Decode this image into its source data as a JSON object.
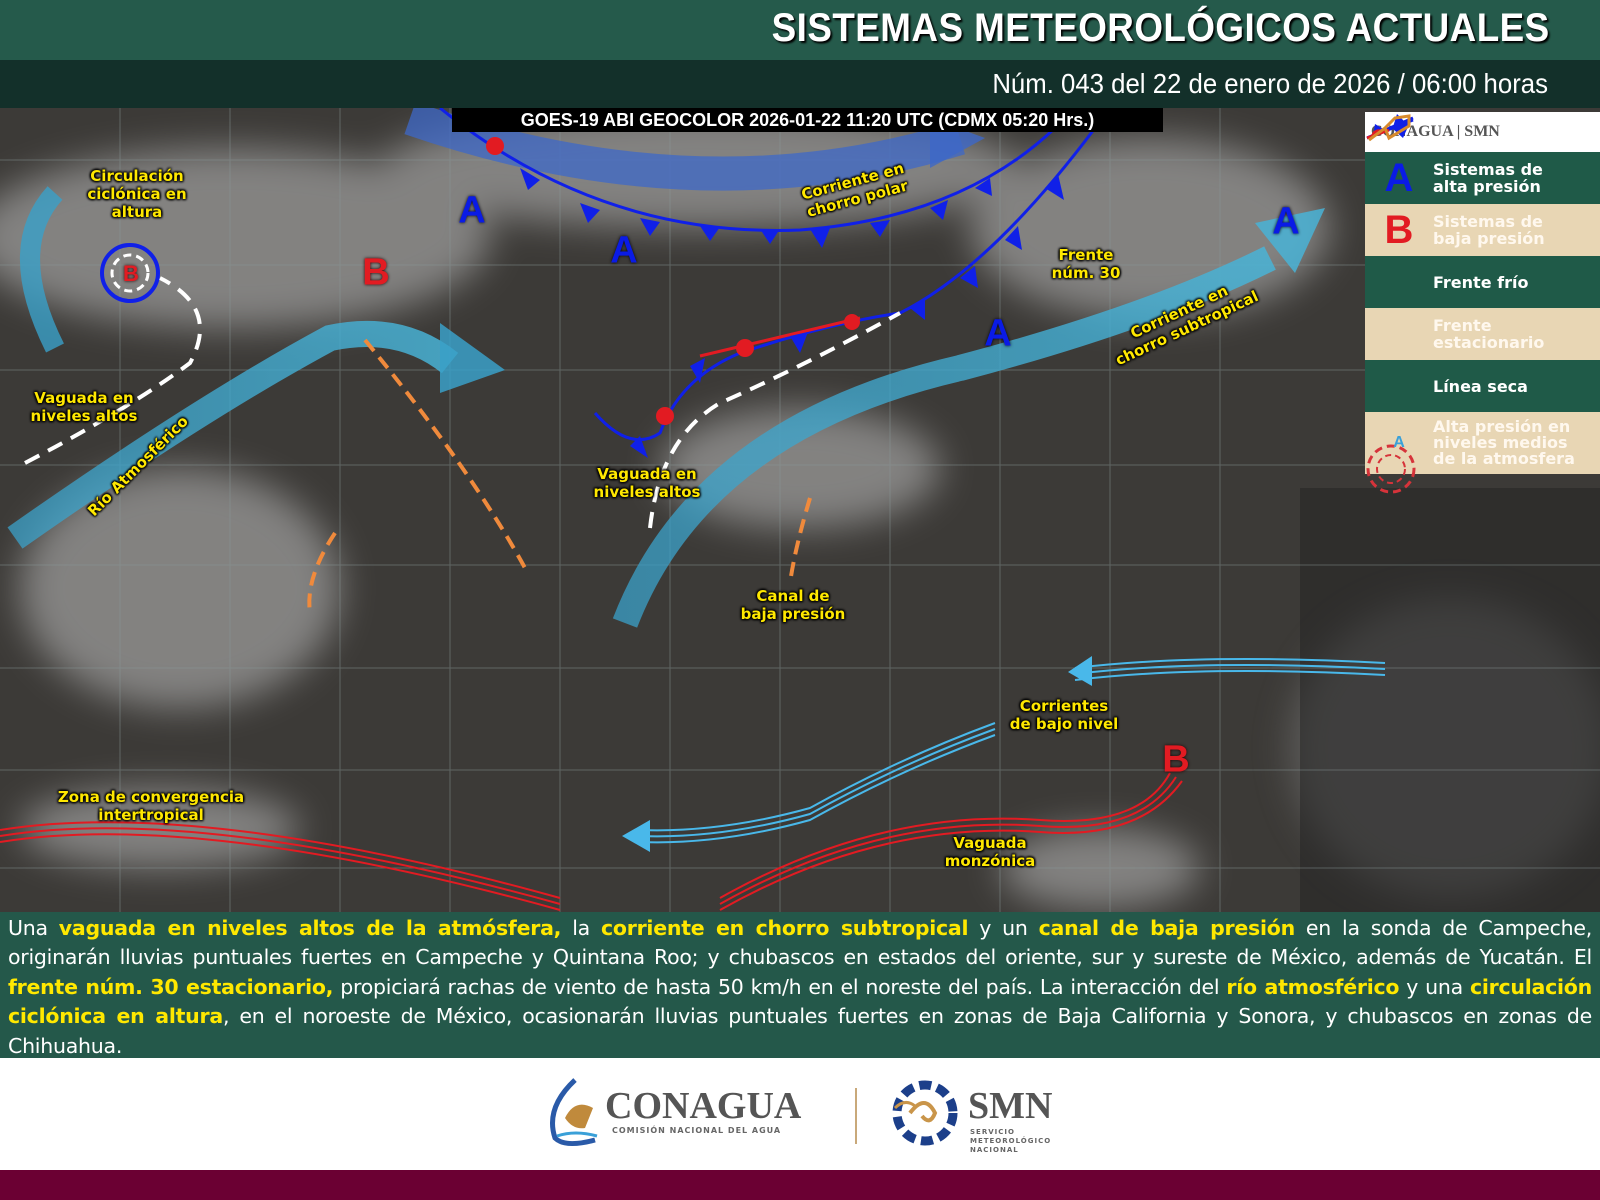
{
  "header": {
    "title": "SISTEMAS METEOROLÓGICOS ACTUALES",
    "subtitle": "Núm. 043 del 22 de enero de 2026 / 06:00 horas"
  },
  "map": {
    "satellite_caption": "GOES-19 ABI GEOCOLOR 2026-01-22 11:20 UTC (CDMX  05:20 Hrs.)",
    "labels": {
      "circulacion": "Circulación\nciclónica en\naltura",
      "vaguada_w": "Vaguada en\nniveles altos",
      "rio": "Río Atmosférico",
      "chorro_polar": "Corriente en\nchorro polar",
      "frente": "Frente\nnúm. 30",
      "chorro_sub": "Corriente en\nchorro subtropical",
      "vaguada_c": "Vaguada en\nniveles altos",
      "canal": "Canal de\nbaja presión",
      "corrientes": "Corrientes\nde bajo nivel",
      "zci": "Zona de convergencia\nintertropical",
      "monzonica": "Vaguada\nmonzónica"
    },
    "high_letter": "A",
    "low_letter": "B",
    "colors": {
      "high": "#0a1be6",
      "low": "#e21b22",
      "label": "#ffe800",
      "jet": "#3aa0c8",
      "dry_line": "#f08a3c"
    }
  },
  "legend": {
    "logo": "CONAGUA | SMN",
    "items": [
      {
        "symbol": "A",
        "label": "Sistemas de\nalta presión"
      },
      {
        "symbol": "B",
        "label": "Sistemas de\nbaja presión"
      },
      {
        "symbol": "cold-front-icon",
        "label": "Frente frío"
      },
      {
        "symbol": "stationary-front-icon",
        "label": "Frente\nestacionario"
      },
      {
        "symbol": "dry-line-icon",
        "label": "Línea seca"
      },
      {
        "symbol": "A",
        "label": "Alta presión en\nniveles medios\nde la atmosfera"
      }
    ]
  },
  "description": [
    {
      "t": "Una ",
      "b": false
    },
    {
      "t": "vaguada en niveles altos de la atmósfera,",
      "b": true
    },
    {
      "t": " la ",
      "b": false
    },
    {
      "t": "corriente en chorro subtropical",
      "b": true
    },
    {
      "t": " y un ",
      "b": false
    },
    {
      "t": "canal de baja presión",
      "b": true
    },
    {
      "t": " en la sonda de Campeche, originarán lluvias puntuales fuertes en Campeche y Quintana Roo; y chubascos en estados del oriente, sur y sureste de México, además de Yucatán. El ",
      "b": false
    },
    {
      "t": "frente núm. 30 estacionario,",
      "b": true
    },
    {
      "t": " propiciará rachas de viento de hasta 50 km/h en el noreste del país. La interacción del ",
      "b": false
    },
    {
      "t": "río atmosférico",
      "b": true
    },
    {
      "t": " y una ",
      "b": false
    },
    {
      "t": "circulación ciclónica en altura",
      "b": true
    },
    {
      "t": ", en el noroeste de México, ocasionarán lluvias puntuales fuertes en zonas de Baja California y Sonora, y chubascos en zonas de Chihuahua.",
      "b": false
    }
  ],
  "footer": {
    "conagua": "CONAGUA",
    "conagua_sub": "COMISIÓN NACIONAL DEL AGUA",
    "smn": "SMN",
    "smn_sub": "SERVICIO\nMETEOROLÓGICO\nNACIONAL"
  }
}
